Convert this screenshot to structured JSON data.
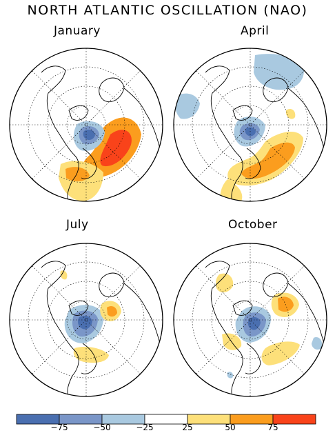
{
  "title": "NORTH ATLANTIC OSCILLATION (NAO)",
  "panels": [
    {
      "label": "January"
    },
    {
      "label": "April"
    },
    {
      "label": "July"
    },
    {
      "label": "October"
    }
  ],
  "colorbar": {
    "colors": [
      "#4a6fb0",
      "#7a96c8",
      "#a9c9e0",
      "#ffffff",
      "#fde07a",
      "#fb9d1e",
      "#f9431a"
    ],
    "labels": [
      "−75",
      "−50",
      "−25",
      "25",
      "50",
      "75"
    ]
  }
}
